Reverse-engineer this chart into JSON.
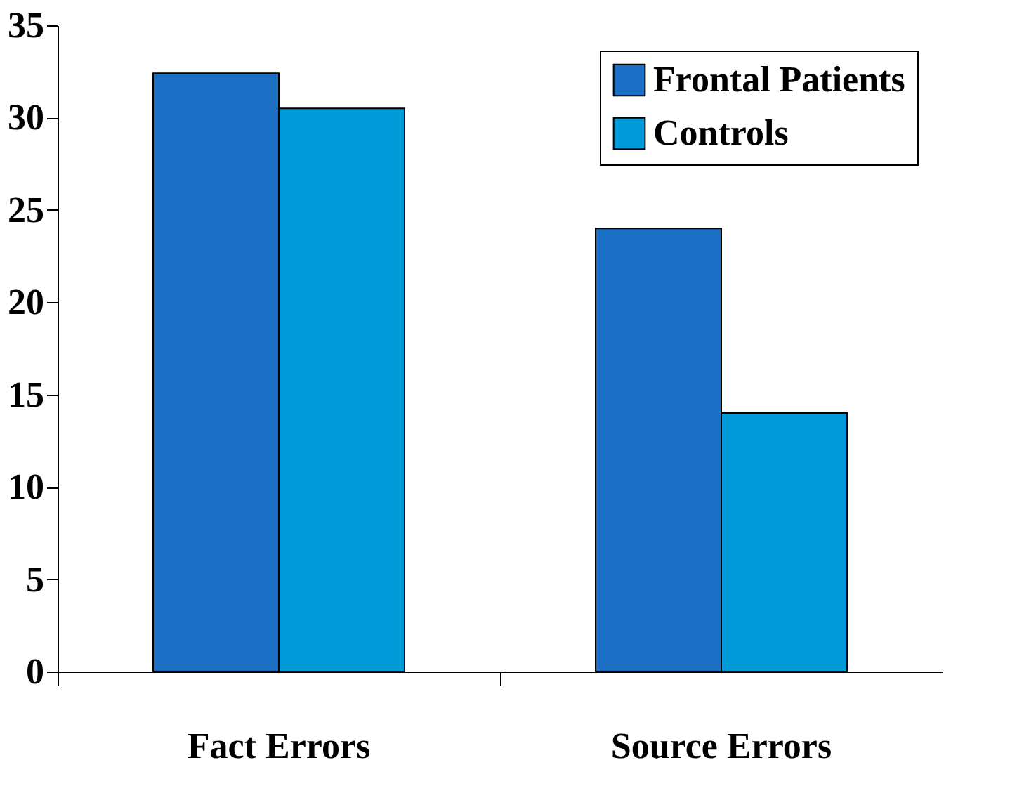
{
  "chart_data": {
    "type": "bar",
    "categories": [
      "Fact Errors",
      "Source Errors"
    ],
    "series": [
      {
        "name": "Frontal Patients",
        "color": "#1a6fc4",
        "values": [
          32.4,
          24
        ]
      },
      {
        "name": "Controls",
        "color": "#009ad8",
        "values": [
          30.5,
          14
        ]
      }
    ],
    "ylim": [
      0,
      35
    ],
    "yticks": [
      0,
      5,
      10,
      15,
      20,
      25,
      30,
      35
    ],
    "grid": false,
    "legend": "top right"
  }
}
